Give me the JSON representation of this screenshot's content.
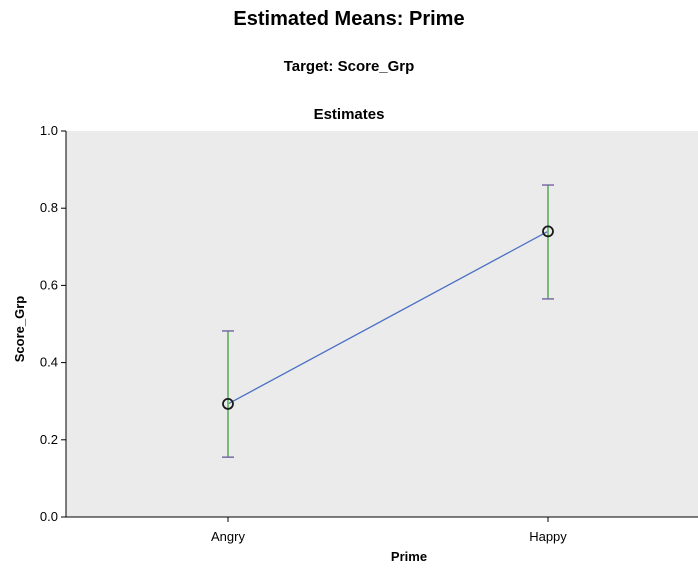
{
  "title": "Estimated Means: Prime",
  "subtitle": "Target: Score_Grp",
  "plot_title": "Estimates",
  "chart_data": {
    "type": "line",
    "title": "Estimates",
    "xlabel": "Prime",
    "ylabel": "Score_Grp",
    "categories": [
      "Angry",
      "Happy"
    ],
    "series": [
      {
        "values": [
          0.293,
          0.74
        ],
        "lower": [
          0.155,
          0.565
        ],
        "upper": [
          0.482,
          0.86
        ]
      }
    ],
    "ylim": [
      0.0,
      1.0
    ],
    "yticks": [
      "0.0",
      "0.2",
      "0.4",
      "0.6",
      "0.8",
      "1.0"
    ],
    "grid": false,
    "legend": "none",
    "colors": {
      "plot_bg": "#ebebeb",
      "line": "#4a6fc6",
      "error_bar": "#7cb87a",
      "error_cap": "#7a6aa8",
      "marker": "#1a1a1a"
    }
  }
}
